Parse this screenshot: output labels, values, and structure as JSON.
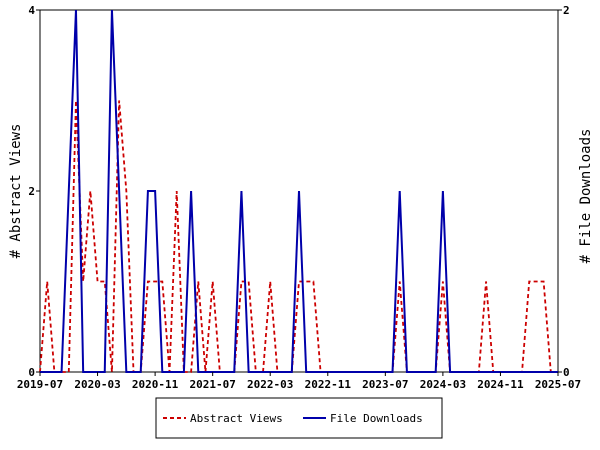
{
  "chart_data": {
    "type": "line",
    "title": "",
    "xlabel": "",
    "y_left_label": "# Abstract Views",
    "y_right_label": "# File Downloads",
    "y_left_range": [
      0,
      4
    ],
    "y_right_range": [
      0,
      2
    ],
    "y_left_ticks": [
      "0",
      "2",
      "4"
    ],
    "y_right_ticks": [
      "0",
      "2"
    ],
    "x_range": [
      "2019-07",
      "2025-07"
    ],
    "x_ticks": [
      "2019-07",
      "2020-03",
      "2020-11",
      "2021-07",
      "2022-03",
      "2022-11",
      "2023-07",
      "2024-03",
      "2024-11",
      "2025-07"
    ],
    "grid": false,
    "legend_position": "bottom",
    "series": [
      {
        "name": "Abstract Views",
        "axis": "left",
        "color": "#cc0000",
        "dash": true,
        "points": [
          [
            "2019-07",
            0
          ],
          [
            "2019-08",
            1
          ],
          [
            "2019-09",
            0
          ],
          [
            "2019-10",
            0
          ],
          [
            "2019-11",
            0
          ],
          [
            "2019-12",
            3
          ],
          [
            "2020-01",
            1
          ],
          [
            "2020-02",
            2
          ],
          [
            "2020-03",
            1
          ],
          [
            "2020-04",
            1
          ],
          [
            "2020-05",
            0
          ],
          [
            "2020-06",
            3
          ],
          [
            "2020-07",
            2
          ],
          [
            "2020-08",
            0
          ],
          [
            "2020-09",
            0
          ],
          [
            "2020-10",
            1
          ],
          [
            "2020-11",
            1
          ],
          [
            "2020-12",
            1
          ],
          [
            "2021-01",
            0
          ],
          [
            "2021-02",
            2
          ],
          [
            "2021-03",
            0
          ],
          [
            "2021-04",
            0
          ],
          [
            "2021-05",
            1
          ],
          [
            "2021-06",
            0
          ],
          [
            "2021-07",
            1
          ],
          [
            "2021-08",
            0
          ],
          [
            "2021-09",
            0
          ],
          [
            "2021-10",
            0
          ],
          [
            "2021-11",
            1
          ],
          [
            "2021-12",
            1
          ],
          [
            "2022-01",
            0
          ],
          [
            "2022-02",
            0
          ],
          [
            "2022-03",
            1
          ],
          [
            "2022-04",
            0
          ],
          [
            "2022-05",
            0
          ],
          [
            "2022-06",
            0
          ],
          [
            "2022-07",
            1
          ],
          [
            "2022-08",
            1
          ],
          [
            "2022-09",
            1
          ],
          [
            "2022-10",
            0
          ],
          [
            "2022-11",
            0
          ],
          [
            "2023-01",
            0
          ],
          [
            "2023-08",
            0
          ],
          [
            "2023-09",
            1
          ],
          [
            "2023-10",
            0
          ],
          [
            "2024-02",
            0
          ],
          [
            "2024-03",
            1
          ],
          [
            "2024-04",
            0
          ],
          [
            "2024-08",
            0
          ],
          [
            "2024-09",
            1
          ],
          [
            "2024-10",
            0
          ],
          [
            "2025-02",
            0
          ],
          [
            "2025-03",
            1
          ],
          [
            "2025-04",
            1
          ],
          [
            "2025-05",
            1
          ],
          [
            "2025-06",
            0
          ],
          [
            "2025-07",
            0
          ]
        ]
      },
      {
        "name": "File Downloads",
        "axis": "right",
        "color": "#0000aa",
        "dash": false,
        "points": [
          [
            "2019-07",
            0
          ],
          [
            "2019-10",
            0
          ],
          [
            "2019-11",
            1
          ],
          [
            "2019-12",
            2
          ],
          [
            "2020-01",
            0
          ],
          [
            "2020-04",
            0
          ],
          [
            "2020-05",
            2
          ],
          [
            "2020-06",
            1
          ],
          [
            "2020-07",
            0
          ],
          [
            "2020-09",
            0
          ],
          [
            "2020-10",
            1
          ],
          [
            "2020-11",
            1
          ],
          [
            "2020-12",
            0
          ],
          [
            "2021-03",
            0
          ],
          [
            "2021-04",
            1
          ],
          [
            "2021-05",
            0
          ],
          [
            "2021-10",
            0
          ],
          [
            "2021-11",
            1
          ],
          [
            "2021-12",
            0
          ],
          [
            "2022-06",
            0
          ],
          [
            "2022-07",
            1
          ],
          [
            "2022-08",
            0
          ],
          [
            "2023-08",
            0
          ],
          [
            "2023-09",
            1
          ],
          [
            "2023-10",
            0
          ],
          [
            "2024-02",
            0
          ],
          [
            "2024-03",
            1
          ],
          [
            "2024-04",
            0
          ],
          [
            "2025-07",
            0
          ]
        ]
      }
    ]
  }
}
